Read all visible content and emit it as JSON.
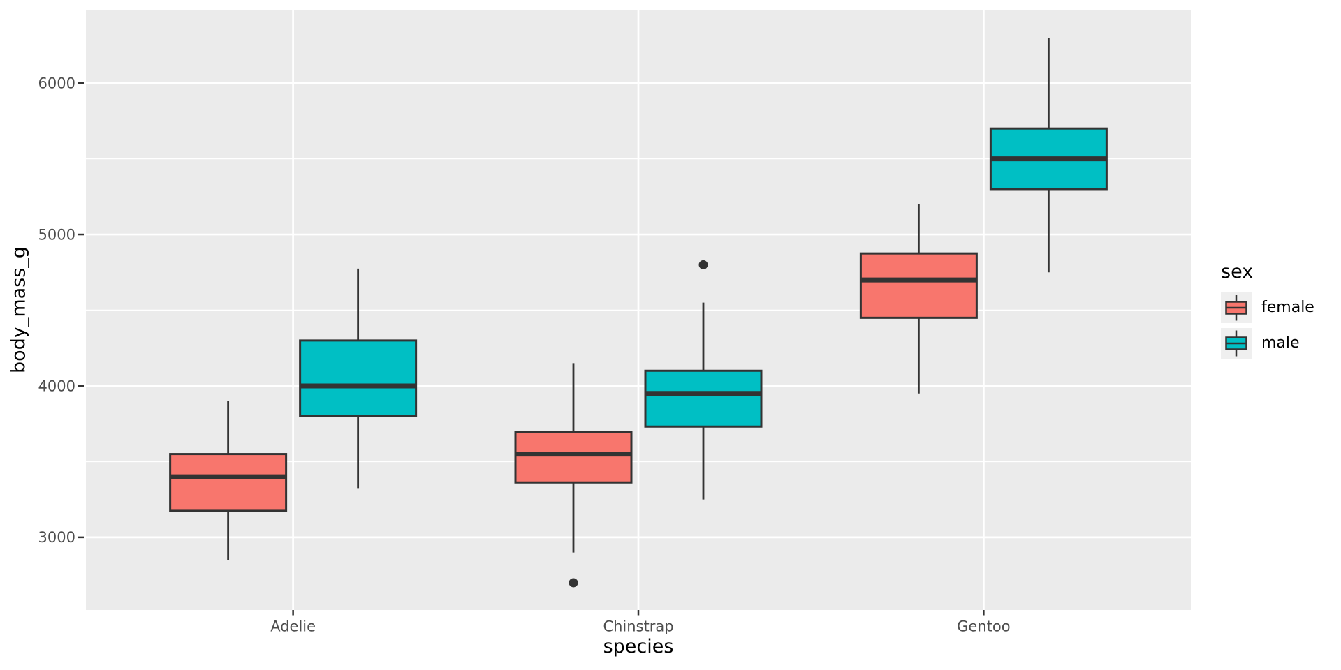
{
  "figure": {
    "kind": "ggplot-boxplot",
    "background": "#ffffff"
  },
  "axes": {
    "x_title": "species",
    "y_title": "body_mass_g",
    "x_tick_labels": [
      "Adelie",
      "Chinstrap",
      "Gentoo"
    ],
    "y_tick_labels": [
      "3000",
      "4000",
      "5000",
      "6000"
    ]
  },
  "legend": {
    "title": "sex",
    "items": [
      {
        "label": "female"
      },
      {
        "label": "male"
      }
    ]
  },
  "chart_data": {
    "type": "boxplot",
    "title": "",
    "xlabel": "species",
    "ylabel": "body_mass_g",
    "categories": [
      "Adelie",
      "Chinstrap",
      "Gentoo"
    ],
    "groups": [
      {
        "name": "female",
        "color": "#F8766D"
      },
      {
        "name": "male",
        "color": "#00BFC4"
      }
    ],
    "legend_title": "sex",
    "legend_position": "right",
    "grid": true,
    "axes": {
      "ylim": [
        2520,
        6480
      ],
      "y_major_ticks": [
        3000,
        4000,
        5000,
        6000
      ],
      "y_minor_ticks": [
        3500,
        4500,
        5500
      ]
    },
    "series": [
      {
        "category": "Adelie",
        "group": "female",
        "whisker_low": 2850,
        "q1": 3175,
        "median": 3400,
        "q3": 3550,
        "whisker_high": 3900,
        "outliers": []
      },
      {
        "category": "Adelie",
        "group": "male",
        "whisker_low": 3325,
        "q1": 3800,
        "median": 4000,
        "q3": 4300,
        "whisker_high": 4775,
        "outliers": []
      },
      {
        "category": "Chinstrap",
        "group": "female",
        "whisker_low": 2900,
        "q1": 3362.5,
        "median": 3550,
        "q3": 3693.75,
        "whisker_high": 4150,
        "outliers": [
          2700
        ]
      },
      {
        "category": "Chinstrap",
        "group": "male",
        "whisker_low": 3250,
        "q1": 3731.25,
        "median": 3950,
        "q3": 4100,
        "whisker_high": 4550,
        "outliers": [
          4800
        ]
      },
      {
        "category": "Gentoo",
        "group": "female",
        "whisker_low": 3950,
        "q1": 4450,
        "median": 4700,
        "q3": 4875,
        "whisker_high": 5200,
        "outliers": []
      },
      {
        "category": "Gentoo",
        "group": "male",
        "whisker_low": 4750,
        "q1": 5300,
        "median": 5500,
        "q3": 5700,
        "whisker_high": 6300,
        "outliers": []
      }
    ],
    "colors": {
      "panel_background": "#EBEBEB",
      "gridline": "#FFFFFF",
      "box_outline": "#333333",
      "median_line": "#333333",
      "outlier_point": "#333333",
      "tick_mark": "#333333",
      "axis_text": "#4D4D4D",
      "axis_title_text": "#000000",
      "legend_key_background": "#EFEFEF"
    }
  }
}
